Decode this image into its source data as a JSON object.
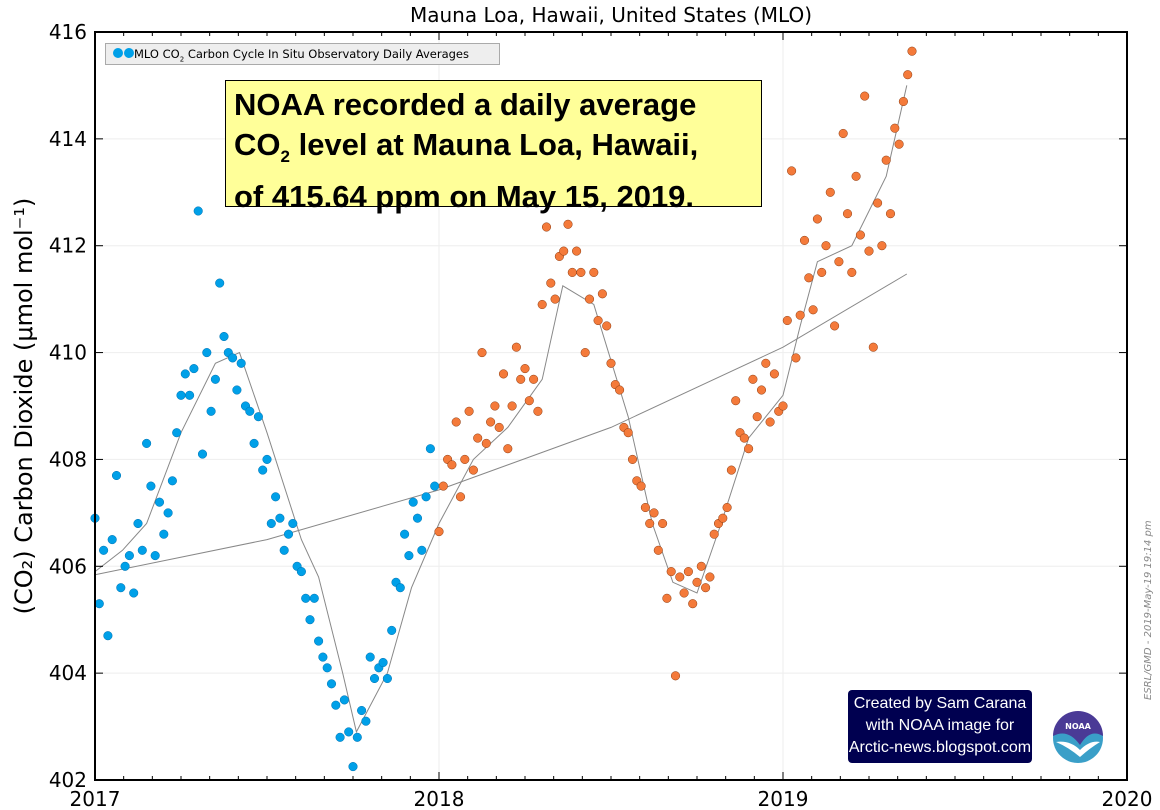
{
  "chart_data": {
    "type": "scatter",
    "title": "Mauna Loa, Hawaii, United States (MLO)",
    "ylabel": "(CO₂) Carbon Dioxide (μmol mol⁻¹)",
    "xlabel": "",
    "xlim": [
      2017,
      2020
    ],
    "ylim": [
      402,
      416
    ],
    "x_ticks": [
      "2017",
      "2018",
      "2019",
      "2020"
    ],
    "y_ticks": [
      "402",
      "404",
      "406",
      "408",
      "410",
      "412",
      "414",
      "416"
    ],
    "grid": true,
    "legend": {
      "placement": "top-left",
      "label_pre": "MLO CO",
      "label_sub": "2",
      "label_post": " Carbon Cycle In Situ Observatory Daily Averages"
    },
    "series": [
      {
        "color": "#00a0e8",
        "x_start": 2017.0,
        "x_step": 0.0125,
        "values": [
          406.9,
          405.3,
          406.3,
          404.7,
          406.5,
          407.7,
          405.6,
          406.0,
          406.2,
          405.5,
          406.8,
          406.3,
          408.3,
          407.5,
          406.2,
          407.2,
          406.6,
          407.0,
          407.6,
          408.5,
          409.2,
          409.6,
          409.2,
          409.7,
          412.65,
          408.1,
          410.0,
          408.9,
          409.5,
          411.3,
          410.3,
          410.0,
          409.9,
          409.3,
          409.8,
          409.0,
          408.9,
          408.3,
          408.8,
          407.8,
          408.0,
          406.8,
          407.3,
          406.9,
          406.3,
          406.6,
          406.8,
          406.0,
          405.9,
          405.4,
          405.0,
          405.4,
          404.6,
          404.3,
          404.1,
          403.8,
          403.4,
          402.8,
          403.5,
          402.9,
          402.25,
          402.8,
          403.3,
          403.1,
          404.3,
          403.9,
          404.1,
          404.2,
          403.9,
          404.8,
          405.7,
          405.6,
          406.6,
          406.2,
          407.2,
          406.9,
          406.3,
          407.3,
          408.2,
          407.5
        ]
      },
      {
        "color": "#f47a3a",
        "x_start": 2018.0,
        "x_step": 0.0125,
        "values": [
          406.65,
          407.5,
          408.0,
          407.9,
          408.7,
          407.3,
          408.0,
          408.9,
          407.8,
          408.4,
          410.0,
          408.3,
          408.7,
          409.0,
          408.6,
          409.6,
          408.2,
          409.0,
          410.1,
          409.5,
          409.7,
          409.1,
          409.5,
          408.9,
          410.9,
          412.35,
          411.3,
          411.0,
          411.8,
          411.9,
          412.4,
          411.5,
          411.9,
          411.5,
          410.0,
          411.0,
          411.5,
          410.6,
          411.1,
          410.5,
          409.8,
          409.4,
          409.3,
          408.6,
          408.5,
          408.0,
          407.6,
          407.5,
          407.1,
          406.8,
          407.0,
          406.3,
          406.8,
          405.4,
          405.9,
          403.95,
          405.8,
          405.5,
          405.9,
          405.3,
          405.7,
          406.0,
          405.6,
          405.8,
          406.6,
          406.8,
          406.9,
          407.1,
          407.8,
          409.1,
          408.5,
          408.4,
          408.2,
          409.5,
          408.8,
          409.3,
          409.8,
          408.7,
          409.6,
          408.9,
          409.0,
          410.6,
          413.4,
          409.9,
          410.7,
          412.1,
          411.4,
          410.8,
          412.5,
          411.5,
          412.0,
          413.0,
          410.5,
          411.7,
          414.1,
          412.6,
          411.5,
          413.3,
          412.2,
          414.8,
          411.9,
          410.1,
          412.8,
          412.0,
          413.6,
          412.6,
          414.2,
          413.9,
          414.7,
          415.2,
          415.64
        ]
      }
    ],
    "seasonal_curve": {
      "color": "#888888",
      "x": [
        2017.0,
        2017.08,
        2017.15,
        2017.25,
        2017.35,
        2017.42,
        2017.5,
        2017.6,
        2017.65,
        2017.72,
        2017.76,
        2017.85,
        2017.92,
        2018.0,
        2018.1,
        2018.2,
        2018.3,
        2018.36,
        2018.45,
        2018.55,
        2018.62,
        2018.68,
        2018.75,
        2018.82,
        2018.9,
        2019.0,
        2019.05,
        2019.1,
        2019.2,
        2019.3,
        2019.36
      ],
      "y": [
        405.9,
        406.3,
        406.8,
        408.5,
        409.8,
        410.0,
        408.5,
        406.5,
        405.8,
        404.0,
        402.9,
        404.0,
        405.6,
        406.8,
        408.0,
        408.6,
        409.5,
        411.25,
        410.9,
        408.8,
        406.8,
        405.7,
        405.5,
        406.8,
        408.4,
        409.2,
        410.5,
        411.7,
        412.0,
        413.3,
        415.0
      ]
    },
    "trend_curve": {
      "color": "#888888",
      "x": [
        2017.0,
        2017.5,
        2018.0,
        2018.5,
        2019.0,
        2019.36
      ],
      "y": [
        405.84,
        406.5,
        407.43,
        408.6,
        410.1,
        411.47
      ]
    }
  },
  "annotation": {
    "line1": "NOAA recorded a daily average",
    "line2_pre": "CO",
    "line2_sub": "2",
    "line2_post": " level at Mauna Loa, Hawaii,",
    "line3": "of 415.64 ppm on May 15, 2019."
  },
  "credit": {
    "line1": "Created by Sam Carana",
    "line2": "with NOAA image for",
    "line3": "Arctic-news.blogspot.com"
  },
  "logo": {
    "text": "NOAA"
  },
  "stamp": "ESRL/GMD - 2019-May-19 19:14 pm"
}
